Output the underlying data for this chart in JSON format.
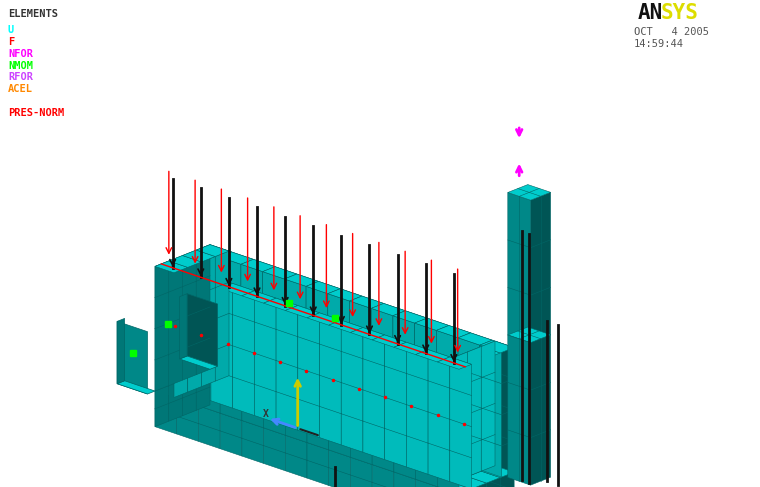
{
  "bg_color": "#ffffff",
  "legend_items": [
    {
      "label": "U",
      "color": "#00ffff"
    },
    {
      "label": "F",
      "color": "#ff0000"
    },
    {
      "label": "NFOR",
      "color": "#ff00ff"
    },
    {
      "label": "NMOM",
      "color": "#00ff00"
    },
    {
      "label": "RFOR",
      "color": "#cc44ff"
    },
    {
      "label": "ACEL",
      "color": "#ff8800"
    },
    {
      "label": "",
      "color": null
    },
    {
      "label": "PRES-NORM",
      "color": "#ff0000"
    }
  ],
  "ansys_black": "AN",
  "ansys_yellow": "SYS",
  "date1": "OCT   4 2005",
  "date2": "14:59:44",
  "mesh_color": "#00cccc",
  "edge_color": "#006666",
  "dark_face": "#008888",
  "darker_face": "#005555",
  "red": "#ff0000",
  "black": "#111111",
  "magenta": "#ff00ff",
  "green": "#00ff00",
  "axis_yellow": "#cccc00",
  "axis_blue": "#4488ff",
  "axis_black": "#222222"
}
